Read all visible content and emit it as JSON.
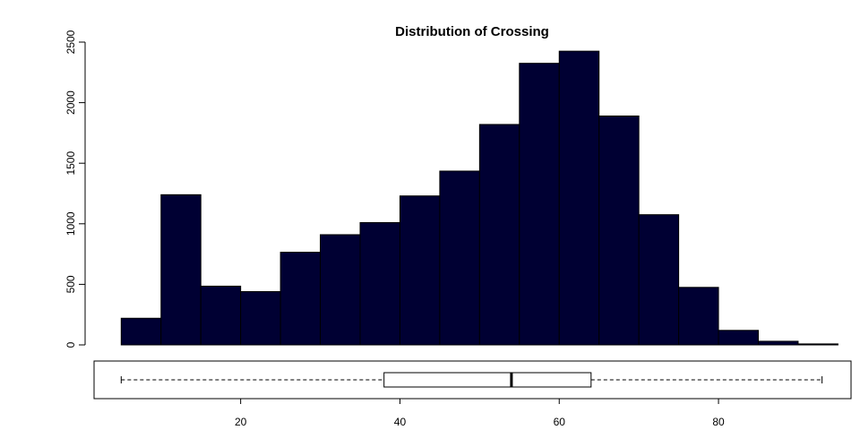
{
  "chart_data": [
    {
      "type": "histogram",
      "title": "Distribution of Crossing",
      "xlabel": "",
      "ylabel": "",
      "bin_width": 5,
      "bins": [
        {
          "x0": 5,
          "x1": 10,
          "count": 220
        },
        {
          "x0": 10,
          "x1": 15,
          "count": 1240
        },
        {
          "x0": 15,
          "x1": 20,
          "count": 485
        },
        {
          "x0": 20,
          "x1": 25,
          "count": 440
        },
        {
          "x0": 25,
          "x1": 30,
          "count": 765
        },
        {
          "x0": 30,
          "x1": 35,
          "count": 910
        },
        {
          "x0": 35,
          "x1": 40,
          "count": 1010
        },
        {
          "x0": 40,
          "x1": 45,
          "count": 1230
        },
        {
          "x0": 45,
          "x1": 50,
          "count": 1435
        },
        {
          "x0": 50,
          "x1": 55,
          "count": 1820
        },
        {
          "x0": 55,
          "x1": 60,
          "count": 2325
        },
        {
          "x0": 60,
          "x1": 65,
          "count": 2425
        },
        {
          "x0": 65,
          "x1": 70,
          "count": 1890
        },
        {
          "x0": 70,
          "x1": 75,
          "count": 1075
        },
        {
          "x0": 75,
          "x1": 80,
          "count": 475
        },
        {
          "x0": 80,
          "x1": 85,
          "count": 120
        },
        {
          "x0": 85,
          "x1": 90,
          "count": 30
        },
        {
          "x0": 90,
          "x1": 95,
          "count": 8
        }
      ],
      "ylim": [
        0,
        2500
      ],
      "yticks": [
        "0",
        "500",
        "1000",
        "1500",
        "2000",
        "2500"
      ],
      "bar_color": "#000033",
      "grid": false
    },
    {
      "type": "boxplot",
      "orientation": "horizontal",
      "min": 5,
      "q1": 38,
      "median": 54,
      "q3": 64,
      "max": 93,
      "xlim": [
        0,
        98
      ],
      "xticks": [
        "20",
        "40",
        "60",
        "80"
      ]
    }
  ]
}
